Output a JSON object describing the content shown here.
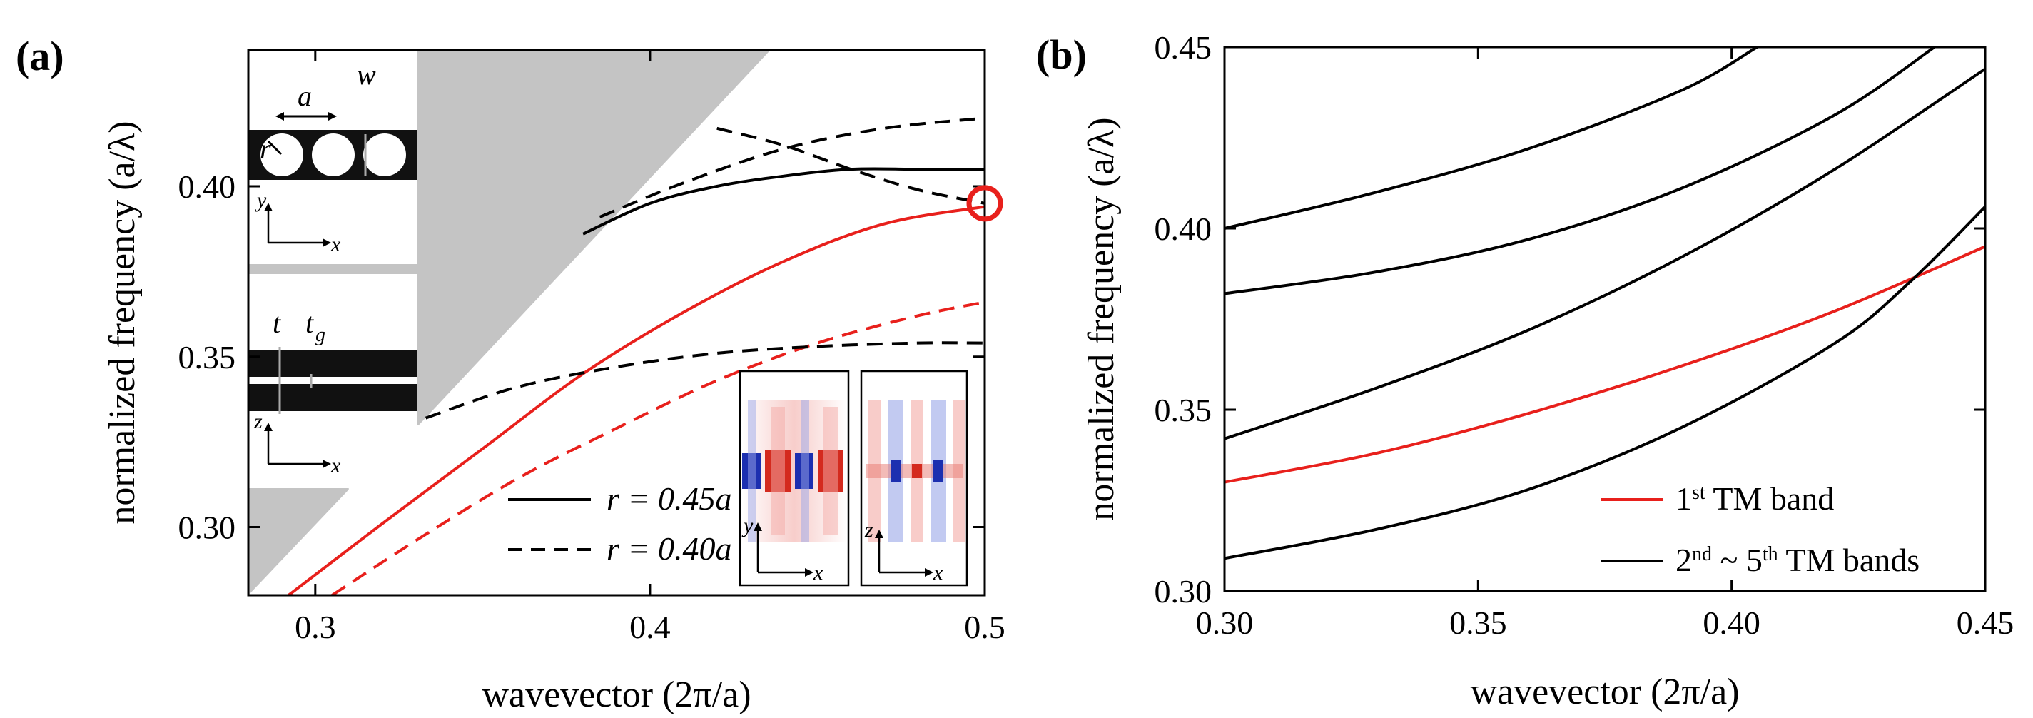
{
  "figure": {
    "panel_a": {
      "label": "(a)"
    },
    "panel_b": {
      "label": "(b)"
    }
  },
  "chart_data": [
    {
      "type": "line",
      "panel": "(a)",
      "xlabel": "wavevector (2π/a)",
      "ylabel": "normalized frequency (a/λ)",
      "xlim": [
        0.28,
        0.5
      ],
      "ylim": [
        0.28,
        0.44
      ],
      "xticks": [
        0.3,
        0.4,
        0.5
      ],
      "xtick_labels": [
        "0.3",
        "0.4",
        "0.5"
      ],
      "yticks": [
        0.3,
        0.35,
        0.4
      ],
      "ytick_labels": [
        "0.30",
        "0.35",
        "0.40"
      ],
      "legend": [
        {
          "label": "r = 0.45a",
          "style": "solid"
        },
        {
          "label": "r = 0.40a",
          "style": "dashed"
        }
      ],
      "colors": {
        "band1": "#e8201c",
        "other": "#000000",
        "light_cone": "#c0c0c0"
      },
      "series": [
        {
          "name": "r=0.45a band 1",
          "style": "solid",
          "color": "red",
          "x": [
            0.292,
            0.32,
            0.35,
            0.38,
            0.41,
            0.44,
            0.47,
            0.5
          ],
          "y": [
            0.28,
            0.301,
            0.323,
            0.345,
            0.363,
            0.378,
            0.389,
            0.394
          ]
        },
        {
          "name": "r=0.40a band 1",
          "style": "dashed",
          "color": "red",
          "x": [
            0.305,
            0.33,
            0.36,
            0.39,
            0.42,
            0.45,
            0.48,
            0.5
          ],
          "y": [
            0.28,
            0.296,
            0.314,
            0.329,
            0.343,
            0.354,
            0.362,
            0.366
          ]
        },
        {
          "name": "r=0.45a band 2",
          "style": "solid",
          "color": "black",
          "x": [
            0.38,
            0.4,
            0.42,
            0.44,
            0.46,
            0.48,
            0.5
          ],
          "y": [
            0.386,
            0.395,
            0.4,
            0.403,
            0.405,
            0.405,
            0.405
          ]
        },
        {
          "name": "r=0.40a band 2a",
          "style": "dashed",
          "color": "black",
          "x": [
            0.385,
            0.41,
            0.44,
            0.47,
            0.5
          ],
          "y": [
            0.391,
            0.401,
            0.411,
            0.417,
            0.42
          ]
        },
        {
          "name": "r=0.40a band 2b",
          "style": "dashed",
          "color": "black",
          "x": [
            0.42,
            0.44,
            0.46,
            0.48,
            0.5
          ],
          "y": [
            0.417,
            0.412,
            0.405,
            0.399,
            0.395
          ]
        },
        {
          "name": "r=0.40a band 3",
          "style": "dashed",
          "color": "black",
          "x": [
            0.333,
            0.36,
            0.39,
            0.42,
            0.45,
            0.48,
            0.5
          ],
          "y": [
            0.332,
            0.341,
            0.347,
            0.351,
            0.353,
            0.354,
            0.354
          ]
        }
      ],
      "marker": {
        "x": 0.5,
        "y": 0.395,
        "shape": "circle",
        "color": "red"
      },
      "insets": {
        "top_left": {
          "labels": [
            "a",
            "w",
            "r",
            "y",
            "x"
          ]
        },
        "mid_left": {
          "labels": [
            "t",
            "t",
            "g",
            "z",
            "x"
          ]
        },
        "field_left": {
          "labels": [
            "y",
            "x"
          ]
        },
        "field_right": {
          "labels": [
            "z",
            "x"
          ]
        }
      }
    },
    {
      "type": "line",
      "panel": "(b)",
      "xlabel": "wavevector (2π/a)",
      "ylabel": "normalized frequency (a/λ)",
      "xlim": [
        0.3,
        0.45
      ],
      "ylim": [
        0.3,
        0.45
      ],
      "xticks": [
        0.3,
        0.35,
        0.4,
        0.45
      ],
      "xtick_labels": [
        "0.30",
        "0.35",
        "0.40",
        "0.45"
      ],
      "yticks": [
        0.3,
        0.35,
        0.4,
        0.45
      ],
      "ytick_labels": [
        "0.30",
        "0.35",
        "0.40",
        "0.45"
      ],
      "legend": [
        {
          "label": "1st TM band",
          "base": "1",
          "sup": "st",
          "text": " TM band",
          "color": "red"
        },
        {
          "label": "2nd ~ 5th TM bands",
          "base": "2",
          "sup": "nd",
          "mid": " ~ 5",
          "sup2": "th",
          "text": " TM bands",
          "color": "black"
        }
      ],
      "series": [
        {
          "name": "1st TM band",
          "color": "red",
          "x": [
            0.3,
            0.33,
            0.36,
            0.39,
            0.42,
            0.45
          ],
          "y": [
            0.33,
            0.338,
            0.349,
            0.362,
            0.377,
            0.395
          ]
        },
        {
          "name": "band 2",
          "color": "black",
          "x": [
            0.3,
            0.33,
            0.36,
            0.39,
            0.42,
            0.435,
            0.45
          ],
          "y": [
            0.309,
            0.317,
            0.328,
            0.345,
            0.368,
            0.385,
            0.406
          ]
        },
        {
          "name": "band 3",
          "color": "black",
          "x": [
            0.3,
            0.33,
            0.36,
            0.39,
            0.42,
            0.45
          ],
          "y": [
            0.342,
            0.356,
            0.372,
            0.392,
            0.416,
            0.444
          ]
        },
        {
          "name": "band 4",
          "color": "black",
          "x": [
            0.3,
            0.33,
            0.36,
            0.39,
            0.42,
            0.44
          ],
          "y": [
            0.382,
            0.388,
            0.397,
            0.411,
            0.431,
            0.45
          ]
        },
        {
          "name": "band 5",
          "color": "black",
          "x": [
            0.3,
            0.33,
            0.36,
            0.39,
            0.405
          ],
          "y": [
            0.4,
            0.41,
            0.422,
            0.438,
            0.45
          ]
        }
      ]
    }
  ]
}
